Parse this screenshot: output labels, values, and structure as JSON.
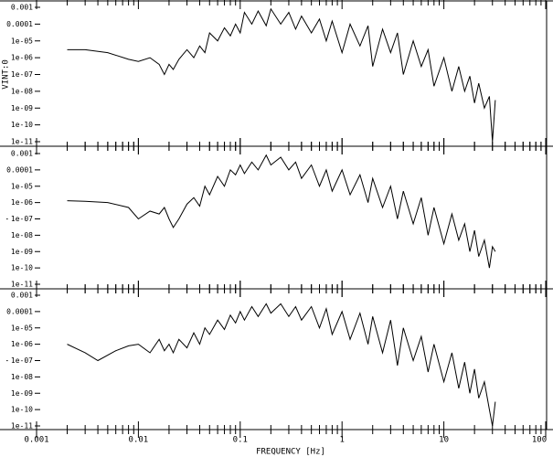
{
  "chart_data": [
    {
      "type": "line",
      "ylabel": "VINT:0",
      "xscale": "log",
      "yscale": "log",
      "xlim": [
        0.001,
        100
      ],
      "xticks": [
        0.001,
        0.01,
        0.1,
        1,
        10,
        100
      ],
      "ylim": [
        1e-11,
        0.001
      ],
      "yticks": [
        0.001,
        0.0001,
        {
          "value": 1e-05,
          "label": "1e-05"
        },
        {
          "value": 1e-06,
          "label": "1e-06"
        },
        {
          "value": 1e-07,
          "label": "1e-07"
        },
        {
          "value": 1e-08,
          "label": "1e-08"
        },
        {
          "value": 1e-09,
          "label": "1e-09"
        },
        {
          "value": 1e-10,
          "label": "1e-10"
        },
        {
          "value": 1e-11,
          "label": "1e-11"
        }
      ],
      "series": [
        {
          "color": "#000000",
          "x": [
            0.002,
            0.003,
            0.005,
            0.008,
            0.01,
            0.013,
            0.016,
            0.018,
            0.02,
            0.022,
            0.025,
            0.03,
            0.035,
            0.04,
            0.045,
            0.05,
            0.06,
            0.07,
            0.08,
            0.09,
            0.1,
            0.11,
            0.13,
            0.15,
            0.18,
            0.2,
            0.25,
            0.3,
            0.35,
            0.4,
            0.5,
            0.6,
            0.7,
            0.8,
            1,
            1.2,
            1.5,
            1.8,
            2,
            2.5,
            3,
            3.5,
            4,
            5,
            6,
            7,
            8,
            10,
            12,
            14,
            16,
            18,
            20,
            22,
            25,
            28,
            30,
            32
          ],
          "values": [
            3e-06,
            3e-06,
            2e-06,
            8e-07,
            6e-07,
            1e-06,
            4e-07,
            1e-07,
            4e-07,
            2e-07,
            8e-07,
            3e-06,
            1e-06,
            5e-06,
            2e-06,
            3e-05,
            1e-05,
            6e-05,
            2e-05,
            0.0001,
            3e-05,
            0.0005,
            0.0001,
            0.0006,
            8e-05,
            0.0008,
            0.0001,
            0.0005,
            5e-05,
            0.0003,
            3e-05,
            0.0002,
            1e-05,
            0.00015,
            2e-06,
            0.0001,
            5e-06,
            8e-05,
            3e-07,
            5e-05,
            2e-06,
            3e-05,
            1e-07,
            1e-05,
            3e-07,
            3e-06,
            2e-08,
            1e-06,
            1e-08,
            3e-07,
            1e-08,
            8e-08,
            2e-09,
            3e-08,
            1e-09,
            5e-09,
            1e-11,
            3e-09
          ]
        }
      ]
    },
    {
      "type": "line",
      "ylabel": ".",
      "xscale": "log",
      "yscale": "log",
      "xlim": [
        0.001,
        100
      ],
      "xticks": [
        0.001,
        0.01,
        0.1,
        1,
        10,
        100
      ],
      "ylim": [
        1e-11,
        0.001
      ],
      "yticks": [
        0.001,
        0.0001,
        {
          "value": 1e-05,
          "label": "1e-05"
        },
        {
          "value": 1e-06,
          "label": "1e-06"
        },
        {
          "value": 1e-07,
          "label": "1e-07"
        },
        {
          "value": 1e-08,
          "label": "1e-08"
        },
        {
          "value": 1e-09,
          "label": "1e-09"
        },
        {
          "value": 1e-10,
          "label": "1e-10"
        },
        {
          "value": 1e-11,
          "label": "1e-11"
        }
      ],
      "series": [
        {
          "color": "#000000",
          "x": [
            0.002,
            0.003,
            0.005,
            0.008,
            0.01,
            0.013,
            0.016,
            0.018,
            0.02,
            0.022,
            0.025,
            0.03,
            0.035,
            0.04,
            0.045,
            0.05,
            0.06,
            0.07,
            0.08,
            0.09,
            0.1,
            0.11,
            0.13,
            0.15,
            0.18,
            0.2,
            0.25,
            0.3,
            0.35,
            0.4,
            0.5,
            0.6,
            0.7,
            0.8,
            1,
            1.2,
            1.5,
            1.8,
            2,
            2.5,
            3,
            3.5,
            4,
            5,
            6,
            7,
            8,
            10,
            12,
            14,
            16,
            18,
            20,
            22,
            25,
            28,
            30,
            32
          ],
          "values": [
            1.3e-06,
            1.2e-06,
            1e-06,
            5e-07,
            1e-07,
            3e-07,
            2e-07,
            5e-07,
            1e-07,
            3e-08,
            1e-07,
            8e-07,
            2e-06,
            6e-07,
            1e-05,
            3e-06,
            4e-05,
            1e-05,
            0.0001,
            5e-05,
            0.0002,
            6e-05,
            0.0003,
            0.0001,
            0.0008,
            0.0002,
            0.0006,
            0.0001,
            0.0003,
            3e-05,
            0.0002,
            1e-05,
            0.0001,
            5e-06,
            0.0001,
            3e-06,
            5e-05,
            1e-06,
            3e-05,
            5e-07,
            1e-05,
            1e-07,
            5e-06,
            5e-08,
            2e-06,
            1e-08,
            5e-07,
            3e-09,
            2e-07,
            5e-09,
            5e-08,
            1e-09,
            2e-08,
            5e-10,
            5e-09,
            1e-10,
            2e-09,
            1e-09
          ]
        }
      ]
    },
    {
      "type": "line",
      "ylabel": ".",
      "xlabel": "FREQUENCY [Hz]",
      "xscale": "log",
      "yscale": "log",
      "xlim": [
        0.001,
        100
      ],
      "xticks": [
        0.001,
        0.01,
        0.1,
        1,
        10,
        100
      ],
      "ylim": [
        1e-11,
        0.001
      ],
      "yticks": [
        0.001,
        0.0001,
        {
          "value": 1e-05,
          "label": "1e-05"
        },
        {
          "value": 1e-06,
          "label": "1e-06"
        },
        {
          "value": 1e-07,
          "label": "1e-07"
        },
        {
          "value": 1e-08,
          "label": "1e-08"
        },
        {
          "value": 1e-09,
          "label": "1e-09"
        },
        {
          "value": 1e-10,
          "label": "1e-10"
        },
        {
          "value": 1e-11,
          "label": "1e-11"
        }
      ],
      "series": [
        {
          "color": "#000000",
          "x": [
            0.002,
            0.003,
            0.004,
            0.006,
            0.008,
            0.01,
            0.013,
            0.016,
            0.018,
            0.02,
            0.022,
            0.025,
            0.03,
            0.035,
            0.04,
            0.045,
            0.05,
            0.06,
            0.07,
            0.08,
            0.09,
            0.1,
            0.11,
            0.13,
            0.15,
            0.18,
            0.2,
            0.25,
            0.3,
            0.35,
            0.4,
            0.5,
            0.6,
            0.7,
            0.8,
            1,
            1.2,
            1.5,
            1.8,
            2,
            2.5,
            3,
            3.5,
            4,
            5,
            6,
            7,
            8,
            10,
            12,
            14,
            16,
            18,
            20,
            22,
            25,
            28,
            30,
            32
          ],
          "values": [
            1e-06,
            3e-07,
            1e-07,
            4e-07,
            8e-07,
            1e-06,
            3e-07,
            2e-06,
            4e-07,
            1e-06,
            3e-07,
            2e-06,
            6e-07,
            5e-06,
            1e-06,
            1e-05,
            4e-06,
            3e-05,
            8e-06,
            6e-05,
            2e-05,
            0.0001,
            3e-05,
            0.0002,
            5e-05,
            0.0003,
            8e-05,
            0.0003,
            5e-05,
            0.0002,
            3e-05,
            0.0002,
            1e-05,
            0.00015,
            4e-06,
            0.0001,
            2e-06,
            8e-05,
            1e-06,
            5e-05,
            3e-07,
            3e-05,
            5e-08,
            1e-05,
            1e-07,
            3e-06,
            2e-08,
            1e-06,
            5e-09,
            3e-07,
            2e-09,
            8e-08,
            1e-09,
            3e-08,
            5e-10,
            5e-09,
            1e-10,
            1e-11,
            3e-10
          ]
        }
      ]
    }
  ]
}
